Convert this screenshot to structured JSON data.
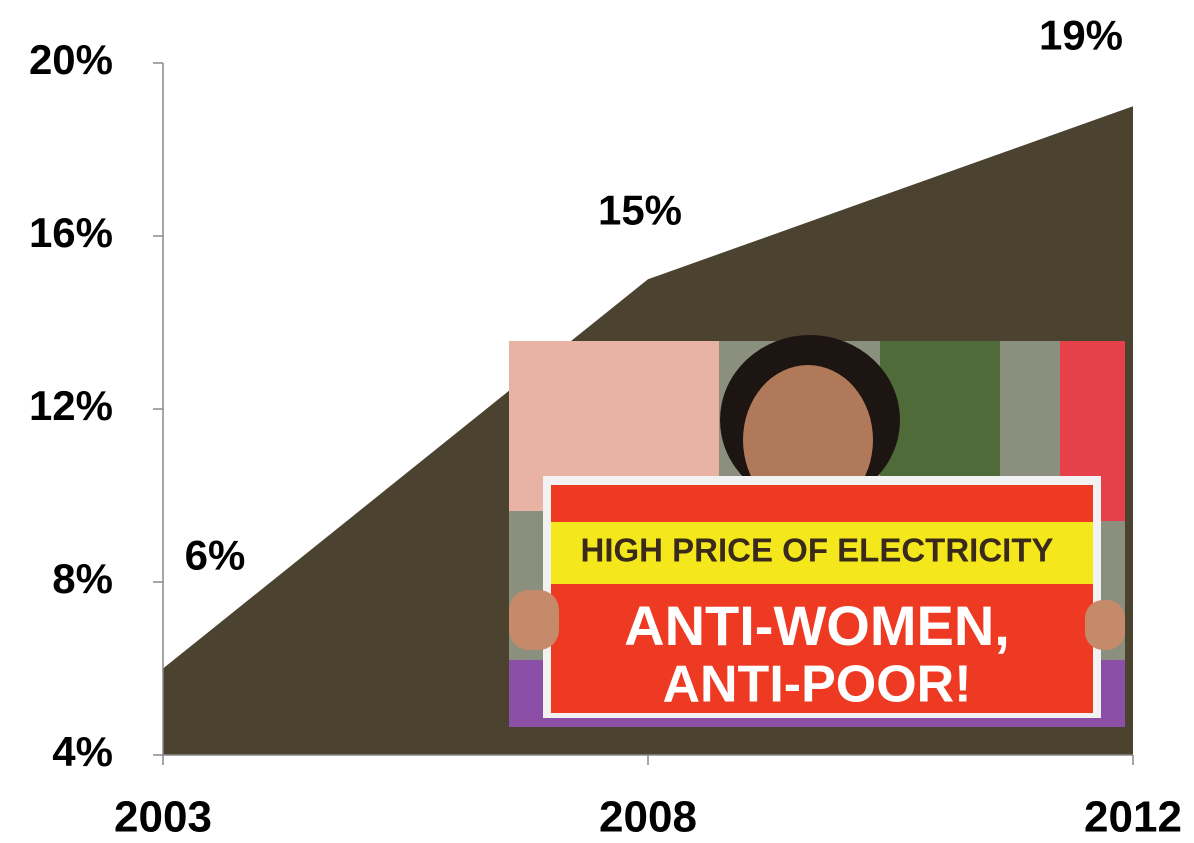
{
  "chart_data": {
    "type": "area",
    "categories": [
      "2003",
      "2008",
      "2012"
    ],
    "values": [
      6,
      15,
      19
    ],
    "value_labels": [
      "6%",
      "15%",
      "19%"
    ],
    "color": "#4b4330",
    "ylim": [
      4,
      20
    ],
    "yticks": [
      {
        "value": 4,
        "label": "4%"
      },
      {
        "value": 8,
        "label": "8%"
      },
      {
        "value": 12,
        "label": "12%"
      },
      {
        "value": 16,
        "label": "16%"
      },
      {
        "value": 20,
        "label": "20%"
      }
    ]
  },
  "photo": {
    "sign_top": "HIGH PRICE OF ELECTRICITY",
    "sign_line1": "ANTI-WOMEN,",
    "sign_line2": "ANTI-POOR!"
  }
}
